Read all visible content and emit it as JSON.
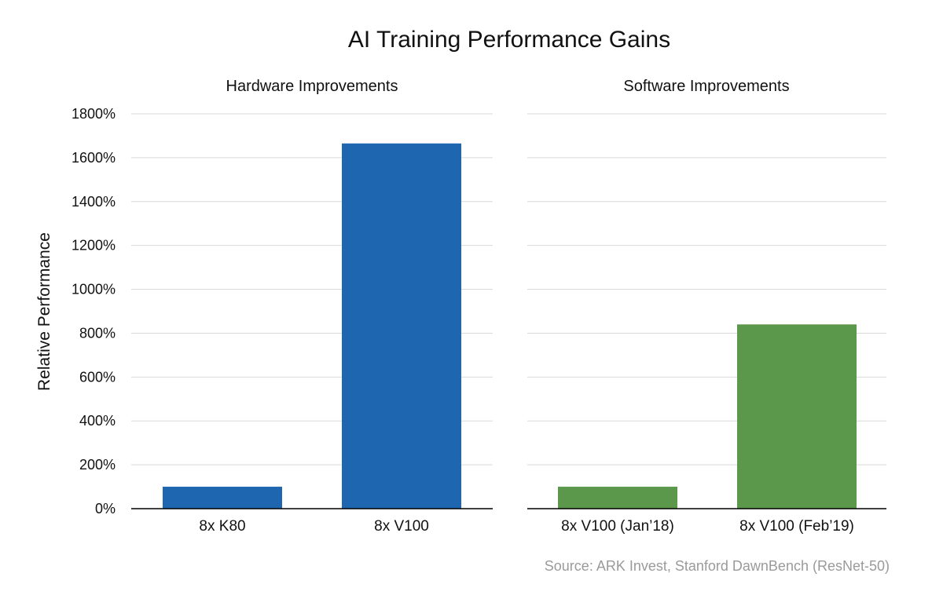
{
  "chart": {
    "title": "AI Training Performance Gains",
    "source": "Source: ARK Invest, Stanford DawnBench (ResNet-50)"
  },
  "chart_data": [
    {
      "type": "bar",
      "title": "Hardware Improvements",
      "ylabel": "Relative Performance",
      "ylim": [
        0,
        1800
      ],
      "yticks": [
        0,
        200,
        400,
        600,
        800,
        1000,
        1200,
        1400,
        1600,
        1800
      ],
      "ytick_labels": [
        "0%",
        "200%",
        "400%",
        "600%",
        "800%",
        "1000%",
        "1200%",
        "1400%",
        "1600%",
        "1800%"
      ],
      "categories": [
        "8x K80",
        "8x V100"
      ],
      "values": [
        100,
        1665
      ],
      "color": "#1f66b0",
      "grid": true
    },
    {
      "type": "bar",
      "title": "Software Improvements",
      "ylim": [
        0,
        1800
      ],
      "yticks": [
        0,
        200,
        400,
        600,
        800,
        1000,
        1200,
        1400,
        1600,
        1800
      ],
      "categories": [
        "8x V100 (Jan’18)",
        "8x V100 (Feb’19)"
      ],
      "values": [
        100,
        840
      ],
      "color": "#5c984c",
      "grid": true
    }
  ]
}
